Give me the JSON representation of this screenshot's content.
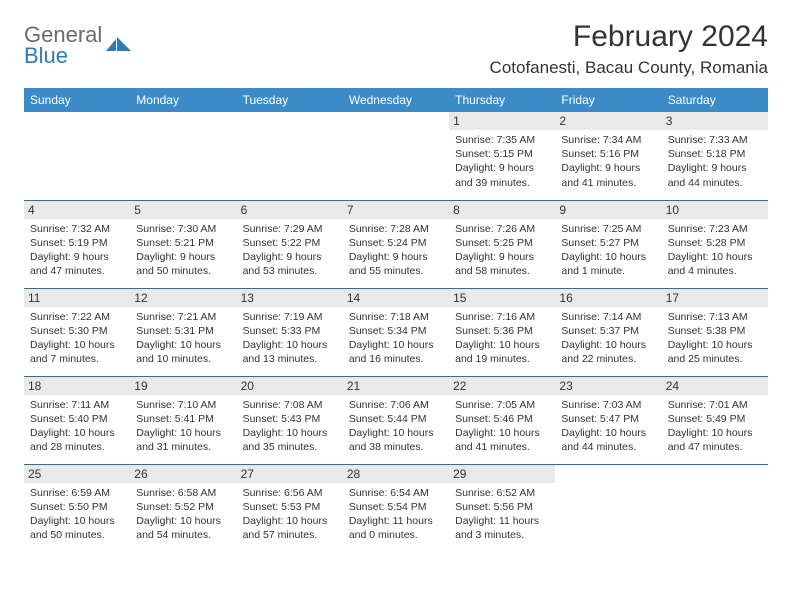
{
  "logo": {
    "line1": "General",
    "line2": "Blue"
  },
  "title": "February 2024",
  "subtitle": "Cotofanesti, Bacau County, Romania",
  "colors": {
    "header_bg": "#3b8bc9",
    "header_text": "#ffffff",
    "border": "#2c6fa8",
    "daynum_bg": "#e9e9e9",
    "text": "#333333",
    "logo_gray": "#6b6b6b",
    "logo_blue": "#2c7bb8"
  },
  "day_headers": [
    "Sunday",
    "Monday",
    "Tuesday",
    "Wednesday",
    "Thursday",
    "Friday",
    "Saturday"
  ],
  "weeks": [
    [
      {
        "num": "",
        "sunrise": "",
        "sunset": "",
        "daylight": ""
      },
      {
        "num": "",
        "sunrise": "",
        "sunset": "",
        "daylight": ""
      },
      {
        "num": "",
        "sunrise": "",
        "sunset": "",
        "daylight": ""
      },
      {
        "num": "",
        "sunrise": "",
        "sunset": "",
        "daylight": ""
      },
      {
        "num": "1",
        "sunrise": "Sunrise: 7:35 AM",
        "sunset": "Sunset: 5:15 PM",
        "daylight": "Daylight: 9 hours and 39 minutes."
      },
      {
        "num": "2",
        "sunrise": "Sunrise: 7:34 AM",
        "sunset": "Sunset: 5:16 PM",
        "daylight": "Daylight: 9 hours and 41 minutes."
      },
      {
        "num": "3",
        "sunrise": "Sunrise: 7:33 AM",
        "sunset": "Sunset: 5:18 PM",
        "daylight": "Daylight: 9 hours and 44 minutes."
      }
    ],
    [
      {
        "num": "4",
        "sunrise": "Sunrise: 7:32 AM",
        "sunset": "Sunset: 5:19 PM",
        "daylight": "Daylight: 9 hours and 47 minutes."
      },
      {
        "num": "5",
        "sunrise": "Sunrise: 7:30 AM",
        "sunset": "Sunset: 5:21 PM",
        "daylight": "Daylight: 9 hours and 50 minutes."
      },
      {
        "num": "6",
        "sunrise": "Sunrise: 7:29 AM",
        "sunset": "Sunset: 5:22 PM",
        "daylight": "Daylight: 9 hours and 53 minutes."
      },
      {
        "num": "7",
        "sunrise": "Sunrise: 7:28 AM",
        "sunset": "Sunset: 5:24 PM",
        "daylight": "Daylight: 9 hours and 55 minutes."
      },
      {
        "num": "8",
        "sunrise": "Sunrise: 7:26 AM",
        "sunset": "Sunset: 5:25 PM",
        "daylight": "Daylight: 9 hours and 58 minutes."
      },
      {
        "num": "9",
        "sunrise": "Sunrise: 7:25 AM",
        "sunset": "Sunset: 5:27 PM",
        "daylight": "Daylight: 10 hours and 1 minute."
      },
      {
        "num": "10",
        "sunrise": "Sunrise: 7:23 AM",
        "sunset": "Sunset: 5:28 PM",
        "daylight": "Daylight: 10 hours and 4 minutes."
      }
    ],
    [
      {
        "num": "11",
        "sunrise": "Sunrise: 7:22 AM",
        "sunset": "Sunset: 5:30 PM",
        "daylight": "Daylight: 10 hours and 7 minutes."
      },
      {
        "num": "12",
        "sunrise": "Sunrise: 7:21 AM",
        "sunset": "Sunset: 5:31 PM",
        "daylight": "Daylight: 10 hours and 10 minutes."
      },
      {
        "num": "13",
        "sunrise": "Sunrise: 7:19 AM",
        "sunset": "Sunset: 5:33 PM",
        "daylight": "Daylight: 10 hours and 13 minutes."
      },
      {
        "num": "14",
        "sunrise": "Sunrise: 7:18 AM",
        "sunset": "Sunset: 5:34 PM",
        "daylight": "Daylight: 10 hours and 16 minutes."
      },
      {
        "num": "15",
        "sunrise": "Sunrise: 7:16 AM",
        "sunset": "Sunset: 5:36 PM",
        "daylight": "Daylight: 10 hours and 19 minutes."
      },
      {
        "num": "16",
        "sunrise": "Sunrise: 7:14 AM",
        "sunset": "Sunset: 5:37 PM",
        "daylight": "Daylight: 10 hours and 22 minutes."
      },
      {
        "num": "17",
        "sunrise": "Sunrise: 7:13 AM",
        "sunset": "Sunset: 5:38 PM",
        "daylight": "Daylight: 10 hours and 25 minutes."
      }
    ],
    [
      {
        "num": "18",
        "sunrise": "Sunrise: 7:11 AM",
        "sunset": "Sunset: 5:40 PM",
        "daylight": "Daylight: 10 hours and 28 minutes."
      },
      {
        "num": "19",
        "sunrise": "Sunrise: 7:10 AM",
        "sunset": "Sunset: 5:41 PM",
        "daylight": "Daylight: 10 hours and 31 minutes."
      },
      {
        "num": "20",
        "sunrise": "Sunrise: 7:08 AM",
        "sunset": "Sunset: 5:43 PM",
        "daylight": "Daylight: 10 hours and 35 minutes."
      },
      {
        "num": "21",
        "sunrise": "Sunrise: 7:06 AM",
        "sunset": "Sunset: 5:44 PM",
        "daylight": "Daylight: 10 hours and 38 minutes."
      },
      {
        "num": "22",
        "sunrise": "Sunrise: 7:05 AM",
        "sunset": "Sunset: 5:46 PM",
        "daylight": "Daylight: 10 hours and 41 minutes."
      },
      {
        "num": "23",
        "sunrise": "Sunrise: 7:03 AM",
        "sunset": "Sunset: 5:47 PM",
        "daylight": "Daylight: 10 hours and 44 minutes."
      },
      {
        "num": "24",
        "sunrise": "Sunrise: 7:01 AM",
        "sunset": "Sunset: 5:49 PM",
        "daylight": "Daylight: 10 hours and 47 minutes."
      }
    ],
    [
      {
        "num": "25",
        "sunrise": "Sunrise: 6:59 AM",
        "sunset": "Sunset: 5:50 PM",
        "daylight": "Daylight: 10 hours and 50 minutes."
      },
      {
        "num": "26",
        "sunrise": "Sunrise: 6:58 AM",
        "sunset": "Sunset: 5:52 PM",
        "daylight": "Daylight: 10 hours and 54 minutes."
      },
      {
        "num": "27",
        "sunrise": "Sunrise: 6:56 AM",
        "sunset": "Sunset: 5:53 PM",
        "daylight": "Daylight: 10 hours and 57 minutes."
      },
      {
        "num": "28",
        "sunrise": "Sunrise: 6:54 AM",
        "sunset": "Sunset: 5:54 PM",
        "daylight": "Daylight: 11 hours and 0 minutes."
      },
      {
        "num": "29",
        "sunrise": "Sunrise: 6:52 AM",
        "sunset": "Sunset: 5:56 PM",
        "daylight": "Daylight: 11 hours and 3 minutes."
      },
      {
        "num": "",
        "sunrise": "",
        "sunset": "",
        "daylight": ""
      },
      {
        "num": "",
        "sunrise": "",
        "sunset": "",
        "daylight": ""
      }
    ]
  ]
}
